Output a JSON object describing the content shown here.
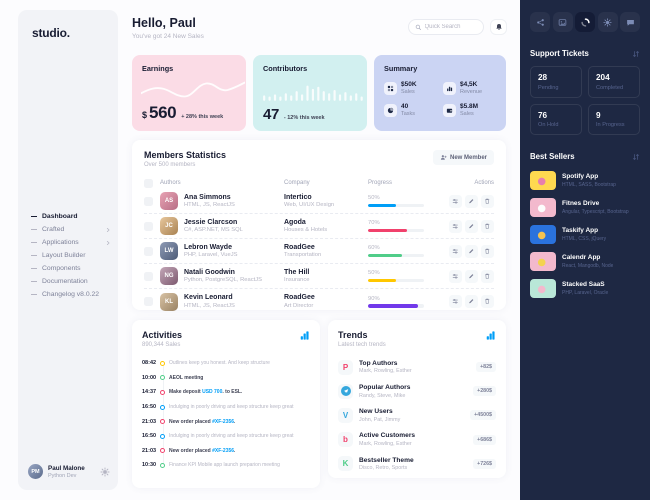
{
  "theme": {
    "accent_blue": "#009ef7",
    "danger_red": "#f1416c",
    "success_green": "#50cd89",
    "warning_yellow": "#ffc700",
    "info_purple": "#7239ea",
    "earnings_card_bg": "#fbdce6",
    "contributors_card_bg": "#d2f0f0",
    "summary_card_bg": "#cbd4f3",
    "dark_panel_bg": "#1e2843"
  },
  "sidebar": {
    "logo": "studio.",
    "nav": [
      {
        "label": "Dashboard",
        "active": true
      },
      {
        "label": "Crafted",
        "has_submenu": true
      },
      {
        "label": "Applications",
        "has_submenu": true
      },
      {
        "label": "Layout Builder"
      },
      {
        "label": "Components"
      },
      {
        "label": "Documentation"
      },
      {
        "label": "Changelog v8.0.22"
      }
    ],
    "user": {
      "name": "Paul Malone",
      "role": "Python Dev",
      "initials": "PM"
    }
  },
  "header": {
    "greeting": "Hello, Paul",
    "subtitle": "You've got 24 New Sales",
    "search_placeholder": "Quick Search"
  },
  "stats": {
    "earnings": {
      "title": "Earnings",
      "currency": "$",
      "value": "560",
      "note": "+ 28% this week"
    },
    "contributors": {
      "title": "Contributors",
      "value": "47",
      "note": "- 12% this week"
    },
    "summary": {
      "title": "Summary",
      "items": [
        {
          "value": "$50K",
          "label": "Sales",
          "icon": "squares-icon"
        },
        {
          "value": "$4,5K",
          "label": "Revenue",
          "icon": "chart-icon"
        },
        {
          "value": "40",
          "label": "Tasks",
          "icon": "pie-icon"
        },
        {
          "value": "$5.8M",
          "label": "Sales",
          "icon": "wallet-icon"
        }
      ]
    }
  },
  "members": {
    "title": "Members Statistics",
    "subtitle": "Over 500 members",
    "new_member_label": "New Member",
    "columns": {
      "authors": "Authors",
      "company": "Company",
      "progress": "Progress",
      "actions": "Actions"
    },
    "rows": [
      {
        "name": "Ana Simmons",
        "skills": "HTML, JS, ReactJS",
        "initials": "AS",
        "company": "Intertico",
        "company_sub": "Web, UI/UX Design",
        "progress": 50,
        "progress_label": "50%",
        "progress_color": "#009ef7"
      },
      {
        "name": "Jessie Clarcson",
        "skills": "C#, ASP.NET, MS SQL",
        "initials": "JC",
        "company": "Agoda",
        "company_sub": "Houses & Hotels",
        "progress": 70,
        "progress_label": "70%",
        "progress_color": "#f1416c"
      },
      {
        "name": "Lebron Wayde",
        "skills": "PHP, Laravel, VueJS",
        "initials": "LW",
        "company": "RoadGee",
        "company_sub": "Transportation",
        "progress": 60,
        "progress_label": "60%",
        "progress_color": "#50cd89"
      },
      {
        "name": "Natali Goodwin",
        "skills": "Python, PostgreSQL, ReactJS",
        "initials": "NG",
        "company": "The Hill",
        "company_sub": "Insurance",
        "progress": 50,
        "progress_label": "50%",
        "progress_color": "#ffc700"
      },
      {
        "name": "Kevin Leonard",
        "skills": "HTML, JS, ReactJS",
        "initials": "KL",
        "company": "RoadGee",
        "company_sub": "Art Director",
        "progress": 90,
        "progress_label": "90%",
        "progress_color": "#7239ea"
      }
    ]
  },
  "activities": {
    "title": "Activities",
    "subtitle": "890,344 Sales",
    "items": [
      {
        "time": "08:42",
        "dot_color": "warning",
        "pre": "Outlines keep you honest. And keep structure",
        "link": "",
        "post": ""
      },
      {
        "time": "10:00",
        "dot_color": "success",
        "pre": "AEOL meeting",
        "link": "",
        "post": ""
      },
      {
        "time": "14:37",
        "dot_color": "danger",
        "pre": "Make deposit ",
        "link": "USD 700",
        "post": ". to ESL."
      },
      {
        "time": "16:50",
        "dot_color": "primary",
        "pre": "Indulging in poorly driving and keep structure keep great",
        "link": "",
        "post": ""
      },
      {
        "time": "21:03",
        "dot_color": "danger",
        "pre": "New order placed ",
        "link": "#XF-2356",
        "post": "."
      },
      {
        "time": "16:50",
        "dot_color": "primary",
        "pre": "Indulging in poorly driving and keep structure keep great",
        "link": "",
        "post": ""
      },
      {
        "time": "21:03",
        "dot_color": "danger",
        "pre": "New order placed ",
        "link": "#XF-2356",
        "post": "."
      },
      {
        "time": "10:30",
        "dot_color": "success",
        "pre": "Finance KPI Mobile app launch preparion meeting",
        "link": "",
        "post": ""
      }
    ]
  },
  "trends": {
    "title": "Trends",
    "subtitle": "Latest tech trends",
    "items": [
      {
        "name": "Top Authors",
        "sub": "Mark, Rowling, Esther",
        "badge": "+82$",
        "icon": "plurk-icon",
        "icon_char": "P"
      },
      {
        "name": "Popular Authors",
        "sub": "Randy, Steve, Mike",
        "badge": "+280$",
        "icon": "telegram-icon",
        "icon_char": ""
      },
      {
        "name": "New Users",
        "sub": "John, Pat, Jimmy",
        "badge": "+4500$",
        "icon": "vimeo-icon",
        "icon_char": "V"
      },
      {
        "name": "Active Customers",
        "sub": "Mark, Rowling, Esther",
        "badge": "+686$",
        "icon": "bebo-icon",
        "icon_char": "b"
      },
      {
        "name": "Bestseller Theme",
        "sub": "Disco, Retro, Sports",
        "badge": "+726$",
        "icon": "kickstarter-icon",
        "icon_char": "K"
      }
    ]
  },
  "right_panel": {
    "toolbar_icons": [
      "share-icon",
      "image-icon",
      "spinner-icon",
      "gear-icon",
      "chat-icon"
    ],
    "toolbar_active_index": 2,
    "support_tickets": {
      "title": "Support Tickets",
      "stats": [
        {
          "value": "28",
          "label": "Pending"
        },
        {
          "value": "204",
          "label": "Completed"
        },
        {
          "value": "76",
          "label": "On Hold"
        },
        {
          "value": "9",
          "label": "In Progress"
        }
      ]
    },
    "best_sellers": {
      "title": "Best Sellers",
      "items": [
        {
          "name": "Spotify App",
          "sub": "HTML, SASS, Bootstrap",
          "thumb_color": "#ffd950"
        },
        {
          "name": "Fitnes Drive",
          "sub": "Angular, Typescript, Bootstrap",
          "thumb_color": "#f3b9cd"
        },
        {
          "name": "Taskify App",
          "sub": "HTML, CSS, jQuery",
          "thumb_color": "#2a72dd"
        },
        {
          "name": "Calendr App",
          "sub": "React, Mangodb, Node",
          "thumb_color": "#f3b9cd"
        },
        {
          "name": "Stacked SaaS",
          "sub": "PHP, Laravel, Oracle",
          "thumb_color": "#b9e7d8"
        }
      ]
    }
  }
}
